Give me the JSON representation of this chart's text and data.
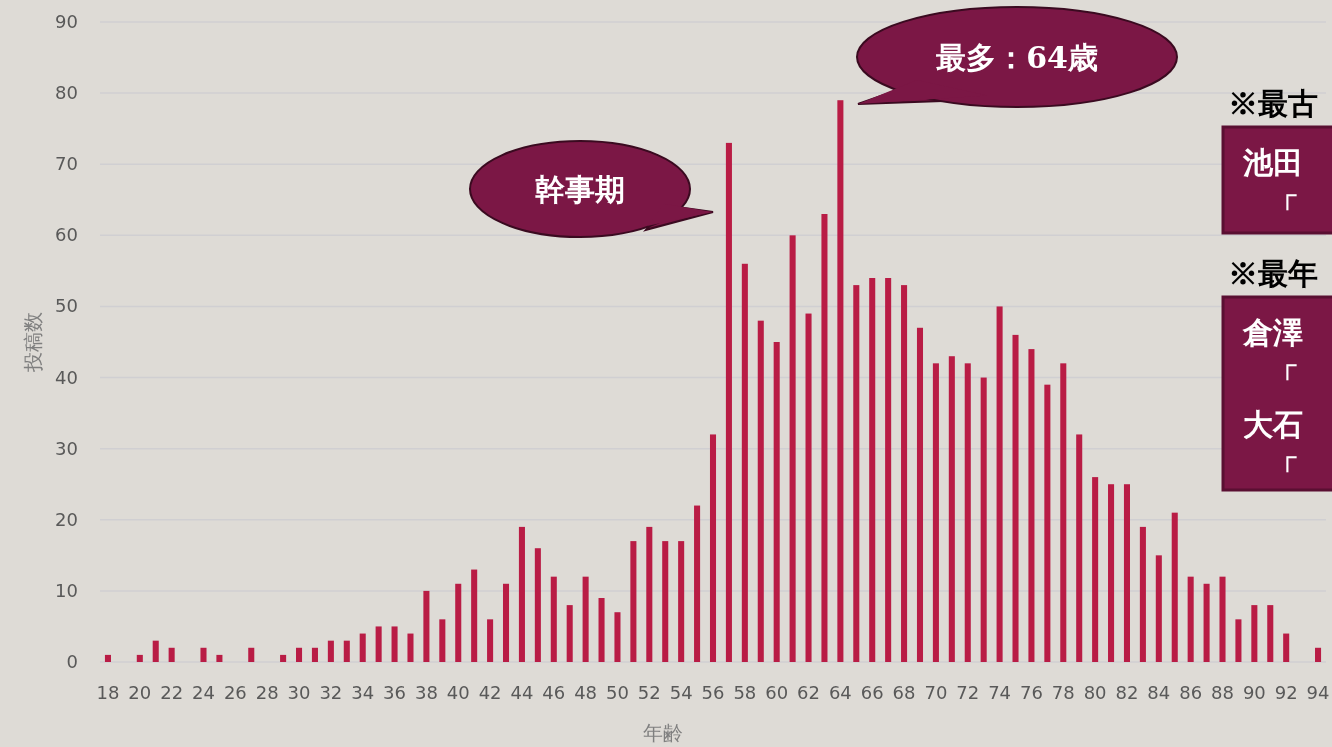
{
  "chart_data": {
    "type": "bar",
    "xlabel": "年齢",
    "ylabel": "投稿数",
    "color": "#b91c45",
    "x": [
      18,
      19,
      20,
      21,
      22,
      23,
      24,
      25,
      26,
      27,
      28,
      29,
      30,
      31,
      32,
      33,
      34,
      35,
      36,
      37,
      38,
      39,
      40,
      41,
      42,
      43,
      44,
      45,
      46,
      47,
      48,
      49,
      50,
      51,
      52,
      53,
      54,
      55,
      56,
      57,
      58,
      59,
      60,
      61,
      62,
      63,
      64,
      65,
      66,
      67,
      68,
      69,
      70,
      71,
      72,
      73,
      74,
      75,
      76,
      77,
      78,
      79,
      80,
      81,
      82,
      83,
      84,
      85,
      86,
      87,
      88,
      89,
      90,
      91,
      92,
      93,
      94
    ],
    "values": [
      1,
      0,
      1,
      3,
      2,
      0,
      2,
      1,
      0,
      2,
      0,
      1,
      2,
      2,
      3,
      3,
      4,
      5,
      5,
      4,
      10,
      6,
      11,
      13,
      6,
      11,
      19,
      16,
      12,
      8,
      12,
      9,
      7,
      17,
      19,
      17,
      17,
      22,
      32,
      73,
      56,
      48,
      45,
      60,
      49,
      63,
      79,
      53,
      54,
      54,
      53,
      47,
      42,
      43,
      42,
      40,
      50,
      46,
      44,
      39,
      42,
      32,
      26,
      25,
      25,
      19,
      15,
      21,
      12,
      11,
      12,
      6,
      8,
      8,
      4,
      0,
      2
    ],
    "xlim": [
      17.5,
      94.5
    ],
    "xticks": [
      18,
      20,
      22,
      24,
      26,
      28,
      30,
      32,
      34,
      36,
      38,
      40,
      42,
      44,
      46,
      48,
      50,
      52,
      54,
      56,
      58,
      60,
      62,
      64,
      66,
      68,
      70,
      72,
      74,
      76,
      78,
      80,
      82,
      84,
      86,
      88,
      90,
      92,
      94
    ],
    "ylim": [
      0,
      90
    ],
    "yticks": [
      0,
      10,
      20,
      30,
      40,
      50,
      60,
      70,
      80,
      90
    ],
    "grid": "y",
    "annotations": [
      "幹事期",
      "最多：64歳",
      "※最古",
      "池田",
      "「",
      "※最年",
      "倉澤",
      "「",
      "大石",
      "「"
    ]
  }
}
